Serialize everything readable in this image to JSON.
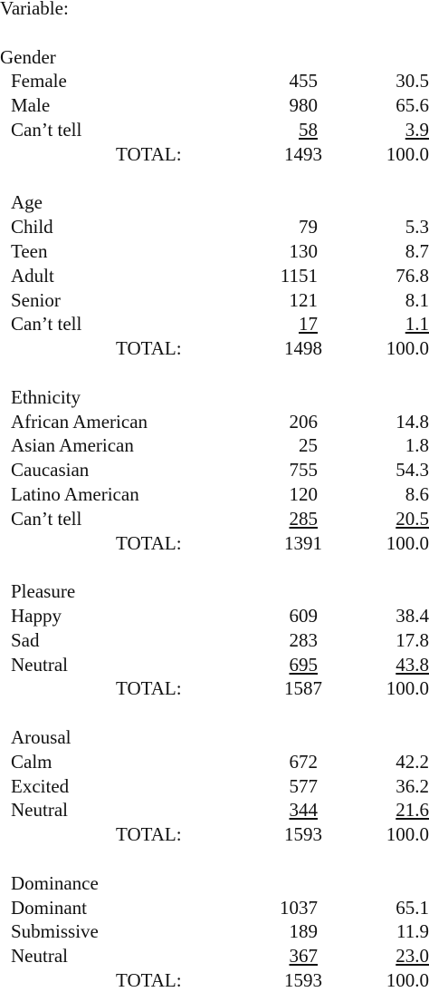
{
  "header": "Variable:",
  "sections": [
    {
      "title": "Gender",
      "rows": [
        [
          "Female",
          "455",
          "30.5"
        ],
        [
          "Male",
          "980",
          "65.6"
        ],
        [
          "Can’t tell",
          "58",
          "3.9"
        ]
      ],
      "total": [
        "TOTAL:",
        "1493",
        "100.0"
      ]
    },
    {
      "title": "Age",
      "rows": [
        [
          "Child",
          "79",
          "5.3"
        ],
        [
          "Teen",
          "130",
          "8.7"
        ],
        [
          "Adult",
          "1151",
          "76.8"
        ],
        [
          "Senior",
          "121",
          "8.1"
        ],
        [
          "Can’t tell",
          "17",
          "1.1"
        ]
      ],
      "total": [
        "TOTAL:",
        "1498",
        "100.0"
      ]
    },
    {
      "title": "Ethnicity",
      "rows": [
        [
          "African American",
          "206",
          "14.8"
        ],
        [
          "Asian American",
          "25",
          "1.8"
        ],
        [
          "Caucasian",
          "755",
          "54.3"
        ],
        [
          "Latino American",
          "120",
          "8.6"
        ],
        [
          "Can’t tell",
          "285",
          "20.5"
        ]
      ],
      "total": [
        "TOTAL:",
        "1391",
        "100.0"
      ]
    },
    {
      "title": "Pleasure",
      "rows": [
        [
          "Happy",
          "609",
          "38.4"
        ],
        [
          "Sad",
          "283",
          "17.8"
        ],
        [
          "Neutral",
          "695",
          "43.8"
        ]
      ],
      "total": [
        "TOTAL:",
        "1587",
        "100.0"
      ]
    },
    {
      "title": "Arousal",
      "rows": [
        [
          "Calm",
          "672",
          "42.2"
        ],
        [
          "Excited",
          "577",
          "36.2"
        ],
        [
          "Neutral",
          "344",
          "21.6"
        ]
      ],
      "total": [
        "TOTAL:",
        "1593",
        "100.0"
      ]
    },
    {
      "title": "Dominance",
      "rows": [
        [
          "Dominant",
          "1037",
          "65.1"
        ],
        [
          "Submissive",
          "189",
          "11.9"
        ],
        [
          "Neutral",
          "367",
          "23.0"
        ]
      ],
      "total": [
        "TOTAL:",
        "1593",
        "100.0"
      ]
    }
  ]
}
